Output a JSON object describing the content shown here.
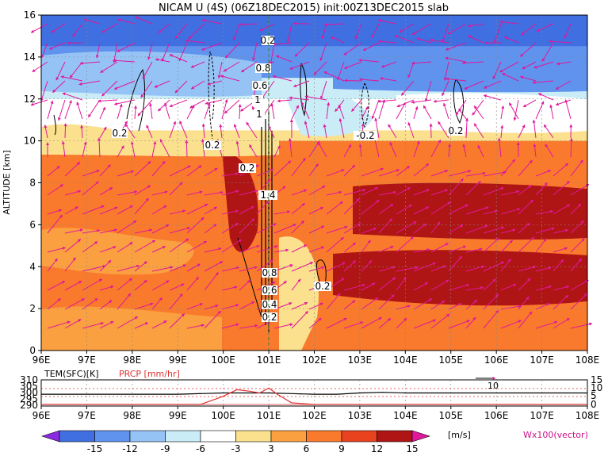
{
  "title": "NICAM U (4S) (06Z18DEC2015) init:00Z13DEC2015 slab",
  "chart_data": [
    {
      "type": "heatmap",
      "ylabel": "ALTITUDE [km]",
      "xlim": [
        96,
        108
      ],
      "ylim": [
        0,
        16
      ],
      "x_ticks": [
        "96E",
        "97E",
        "98E",
        "99E",
        "100E",
        "101E",
        "102E",
        "103E",
        "104E",
        "105E",
        "106E",
        "107E",
        "108E"
      ],
      "y_ticks": [
        "0",
        "2",
        "4",
        "6",
        "8",
        "10",
        "12",
        "14",
        "16"
      ],
      "grid": true,
      "colorbar": {
        "levels": [
          "-15",
          "-12",
          "-9",
          "-6",
          "-3",
          "3",
          "6",
          "9",
          "12",
          "15"
        ],
        "colors": [
          "#8a2be2",
          "#3f6fe0",
          "#5f93ee",
          "#96c3f5",
          "#c9ecf7",
          "#ffffff",
          "#fbe08e",
          "#fba040",
          "#f97a2c",
          "#e8421f",
          "#b01515",
          "#e0189c"
        ],
        "unit": "[m/s]"
      },
      "vector_label": "Wx100(vector)",
      "contour_labels": [
        "0.2",
        "0.4",
        "0.6",
        "0.8",
        "1",
        "1.4",
        "-0.2"
      ],
      "u_bands": [
        {
          "y_range": [
            14.5,
            16
          ],
          "u": -14
        },
        {
          "y_range": [
            13,
            14.5
          ],
          "u": -10
        },
        {
          "y_range": [
            12,
            13
          ],
          "u": -6
        },
        {
          "y_range": [
            10.5,
            12
          ],
          "u": 0
        },
        {
          "y_range": [
            10,
            10.5
          ],
          "u": 4
        },
        {
          "y_range": [
            0,
            10
          ],
          "u": 9
        }
      ]
    },
    {
      "type": "line",
      "series": [
        {
          "name": "TEM(SFC)[K]",
          "x": [
            96,
            97,
            98,
            99,
            100,
            100.5,
            101,
            101.5,
            102,
            102.5,
            103,
            103.5,
            104,
            104.5,
            105,
            105.5,
            106,
            107,
            108
          ],
          "y": [
            299,
            299,
            299,
            299,
            300,
            300,
            300,
            299.5,
            299,
            299,
            300,
            300.5,
            300,
            300,
            300,
            300,
            300,
            300,
            300
          ]
        },
        {
          "name": "PRCP [mm/hr]",
          "x": [
            96,
            97,
            98,
            99,
            99.5,
            100,
            100.3,
            100.6,
            100.8,
            101,
            101.2,
            101.5,
            102,
            103,
            104,
            105,
            106,
            107,
            108
          ],
          "y": [
            0,
            0,
            0,
            0,
            0,
            5,
            9,
            8,
            7,
            10,
            6,
            1,
            0,
            0,
            0,
            0,
            0,
            0,
            0
          ]
        }
      ],
      "y_left_ticks": [
        "310",
        "300",
        "290"
      ],
      "y_left_mid": "305",
      "y_left_low": "295",
      "y_right_ticks": [
        "15",
        "10",
        "5",
        "0"
      ],
      "x_ticks": [
        "96E",
        "97E",
        "98E",
        "99E",
        "100E",
        "101E",
        "102E",
        "103E",
        "104E",
        "105E",
        "106E",
        "107E",
        "108E"
      ],
      "annotation": "10"
    }
  ]
}
